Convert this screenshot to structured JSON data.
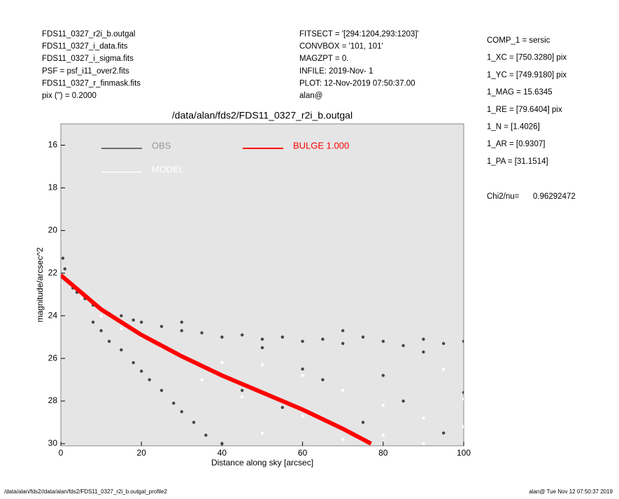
{
  "header": {
    "left": [
      "FDS11_0327_r2i_b.outgal",
      "FDS11_0327_i_data.fits",
      "FDS11_0327_i_sigma.fits",
      "PSF     = psf_i11_over2.fits",
      "FDS11_0327_r_finmask.fits",
      "pix (\") =  0.2000"
    ],
    "middle": [
      "FITSECT = '[294:1204,293:1203]'",
      "CONVBOX = '101, 101'",
      "MAGZPT  =               0.",
      "INFILE: 2019-Nov- 1",
      "PLOT: 12-Nov-2019 07:50:37.00",
      "alan@"
    ],
    "right": [
      "COMP_1  = sersic",
      "1_XC    = [750.3280] pix",
      "1_YC    = [749.9180] pix",
      "1_MAG   = 15.6345",
      "1_RE    = [79.6404] pix",
      "1_N     = [1.4026]",
      "1_AR    = [0.9307]",
      "1_PA    = [31.1514]"
    ],
    "chi2_label": "Chi2/nu=",
    "chi2_value": "0.96292472"
  },
  "footer": {
    "left": "/data/alan/fds2//data/alan/fds2/FDS11_0327_r2i_b.outgal_profile2",
    "right": "alan@  Tue Nov 12 07:50:37 2019"
  },
  "chart_data": {
    "type": "scatter",
    "title": "/data/alan/fds2/FDS11_0327_r2i_b.outgal",
    "x_label": "Distance along sky [arcsec]",
    "y_label": "magnitude/arcsec^2",
    "xlim": [
      0,
      100
    ],
    "ylim": [
      30.1,
      15
    ],
    "xticks": [
      0,
      20,
      40,
      60,
      80,
      100
    ],
    "yticks": [
      16,
      18,
      20,
      22,
      24,
      26,
      28,
      30
    ],
    "background": "#e5e5e5",
    "series": [
      {
        "name": "OBS",
        "color": "#444444",
        "x": [
          0.5,
          1,
          2,
          3,
          4,
          6,
          8,
          10,
          12,
          15,
          18,
          20,
          25,
          30,
          35,
          40,
          45,
          50,
          55,
          60,
          65,
          70,
          75,
          80,
          85,
          90,
          95,
          100,
          30,
          50,
          70,
          90,
          8,
          10,
          12,
          15,
          18,
          20,
          22,
          25,
          28,
          30,
          33,
          36,
          40,
          45,
          55,
          65,
          75,
          85,
          95,
          60,
          80,
          100
        ],
        "values": [
          21.3,
          21.8,
          22.4,
          22.7,
          22.9,
          23.2,
          23.5,
          23.7,
          23.9,
          24.0,
          24.2,
          24.3,
          24.5,
          24.7,
          24.8,
          25.0,
          24.9,
          25.1,
          25.0,
          25.2,
          25.1,
          25.3,
          25.0,
          25.2,
          25.4,
          25.1,
          25.3,
          25.2,
          24.3,
          25.5,
          24.7,
          25.7,
          24.3,
          24.7,
          25.2,
          25.6,
          26.2,
          26.6,
          27.0,
          27.5,
          28.1,
          28.5,
          29.0,
          29.6,
          30.0,
          27.5,
          28.3,
          27.0,
          29.0,
          28.0,
          29.5,
          26.5,
          26.8,
          27.6
        ]
      },
      {
        "name": "MODEL",
        "color": "#ffffff",
        "x": [
          5,
          10,
          15,
          20,
          25,
          30,
          40,
          50,
          60,
          70,
          80,
          90,
          100,
          50,
          70,
          90,
          35,
          45,
          60,
          80,
          95,
          100
        ],
        "values": [
          23.2,
          24.0,
          24.6,
          25.0,
          25.5,
          25.8,
          26.2,
          26.3,
          26.8,
          27.5,
          28.2,
          28.8,
          29.2,
          29.5,
          29.8,
          30.0,
          27.0,
          27.8,
          28.7,
          29.6,
          26.5,
          27.9
        ]
      },
      {
        "name": "BULGE  1.000",
        "color": "#ff0000",
        "type": "line",
        "x": [
          0,
          10,
          20,
          30,
          40,
          50,
          60,
          70,
          77
        ],
        "values": [
          22.1,
          23.7,
          24.9,
          25.9,
          26.8,
          27.6,
          28.4,
          29.3,
          30.0
        ]
      }
    ]
  }
}
